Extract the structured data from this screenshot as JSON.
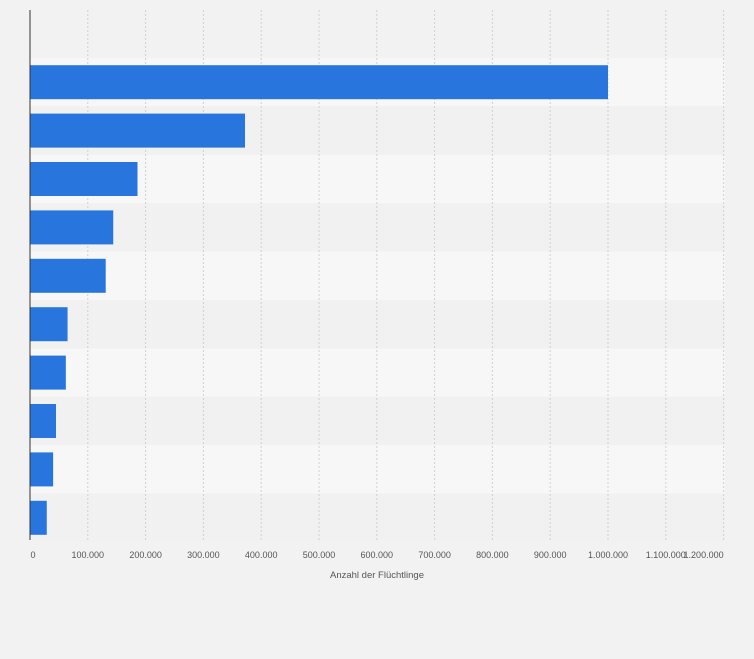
{
  "chart_data": {
    "type": "bar",
    "orientation": "horizontal",
    "title": "",
    "xlabel": "Anzahl der Flüchtlinge",
    "ylabel": "",
    "categories": [
      "",
      "",
      "",
      "",
      "",
      "",
      "",
      "",
      "",
      ""
    ],
    "values": [
      1000000,
      372000,
      186000,
      144000,
      131000,
      65000,
      62000,
      45000,
      40000,
      29000
    ],
    "xlim": [
      0,
      1200000
    ],
    "xticks": [
      0,
      100000,
      200000,
      300000,
      400000,
      500000,
      600000,
      700000,
      800000,
      900000,
      1000000,
      1100000,
      1200000
    ],
    "xtick_labels": [
      "0",
      "100.000",
      "200.000",
      "300.000",
      "400.000",
      "500.000",
      "600.000",
      "700.000",
      "800.000",
      "900.000",
      "1.000.000",
      "1.100.000",
      "1.200.000"
    ],
    "grid": true,
    "bar_color": "#2876dd",
    "row_band_colors": [
      "#f7f7f7",
      "#f1f1f1"
    ],
    "grid_color": "#d0d0d0",
    "axis_color": "#333333"
  }
}
